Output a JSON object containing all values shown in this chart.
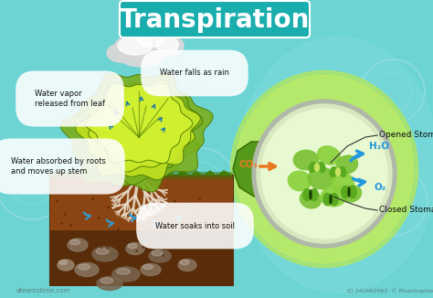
{
  "title": "Transpiration",
  "bg_color": "#6dd4d4",
  "title_box_color": "#1aadad",
  "title_text_color": "white",
  "title_fontsize": 20,
  "labels": {
    "water_vapor": "Water vapor\nreleased from leaf",
    "water_rain": "Water falls as rain",
    "water_roots": "Water absorbed by roots\nand moves up stem",
    "water_soil": "Water soaks into soil",
    "opened_stomata": "Opened Stomata",
    "closed_stomata": "Closed Stomata",
    "co2": "CO₂",
    "h2o": "H₂O",
    "o2": "O₂"
  },
  "watermark": "dreamstime.com",
  "credit": "ID 242662962  © Blueringmedia"
}
